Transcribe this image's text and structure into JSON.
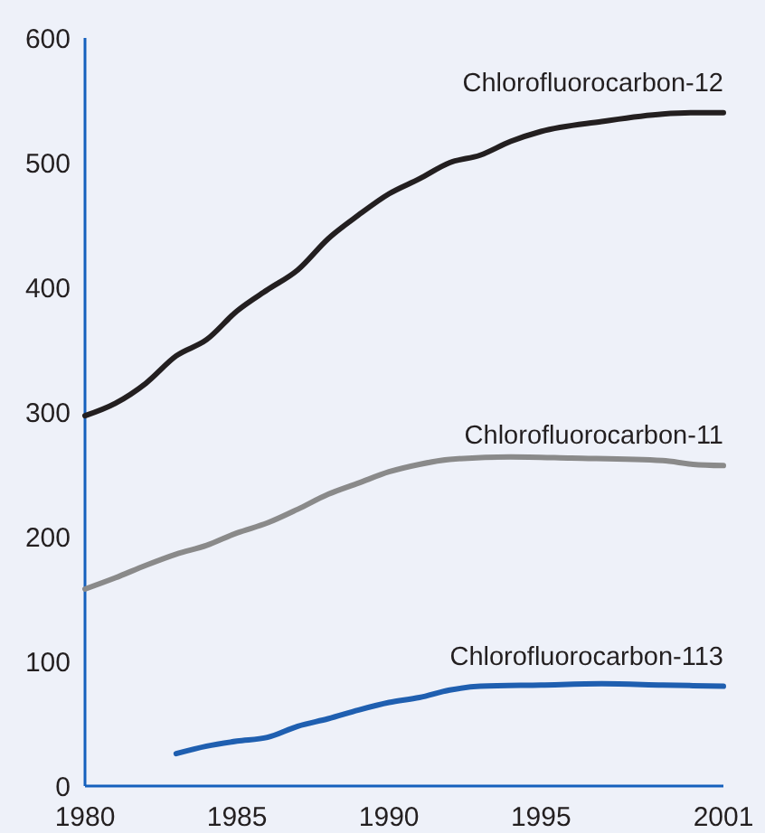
{
  "chart_data": {
    "type": "line",
    "xlim": [
      1980,
      2001
    ],
    "xticks": [
      1980,
      1985,
      1990,
      1995,
      2001
    ],
    "ylim": [
      0,
      600
    ],
    "yticks": [
      0,
      100,
      200,
      300,
      400,
      500,
      600
    ],
    "grid": false,
    "marker": "none",
    "line_style": "solid",
    "series": [
      {
        "name": "Chlorofluorocarbon-12",
        "color": "#231f20",
        "x": [
          1980,
          1981,
          1982,
          1983,
          1984,
          1985,
          1986,
          1987,
          1988,
          1989,
          1990,
          1991,
          1992,
          1993,
          1994,
          1995,
          1997,
          1999,
          2000,
          2001
        ],
        "values": [
          297,
          307,
          323,
          345,
          358,
          381,
          398,
          414,
          439,
          458,
          475,
          487,
          500,
          506,
          517,
          525,
          533,
          539,
          540,
          540
        ]
      },
      {
        "name": "Chlorofluorocarbon-11",
        "color": "#8a8a8a",
        "x": [
          1980,
          1981,
          1982,
          1983,
          1984,
          1985,
          1986,
          1987,
          1988,
          1989,
          1990,
          1991,
          1992,
          1994,
          1996,
          1999,
          2000,
          2001
        ],
        "values": [
          158,
          167,
          177,
          186,
          193,
          203,
          211,
          222,
          234,
          243,
          252,
          258,
          262,
          264,
          263,
          261,
          258,
          257
        ]
      },
      {
        "name": "Chlorofluorocarbon-113",
        "color": "#1f5fb0",
        "x": [
          1983,
          1984,
          1985,
          1986,
          1987,
          1988,
          1989,
          1990,
          1991,
          1992,
          1993,
          1995,
          1997,
          1999,
          2001
        ],
        "values": [
          26,
          32,
          36,
          39,
          48,
          54,
          61,
          67,
          71,
          77,
          80,
          81,
          82,
          81,
          80
        ]
      }
    ]
  }
}
